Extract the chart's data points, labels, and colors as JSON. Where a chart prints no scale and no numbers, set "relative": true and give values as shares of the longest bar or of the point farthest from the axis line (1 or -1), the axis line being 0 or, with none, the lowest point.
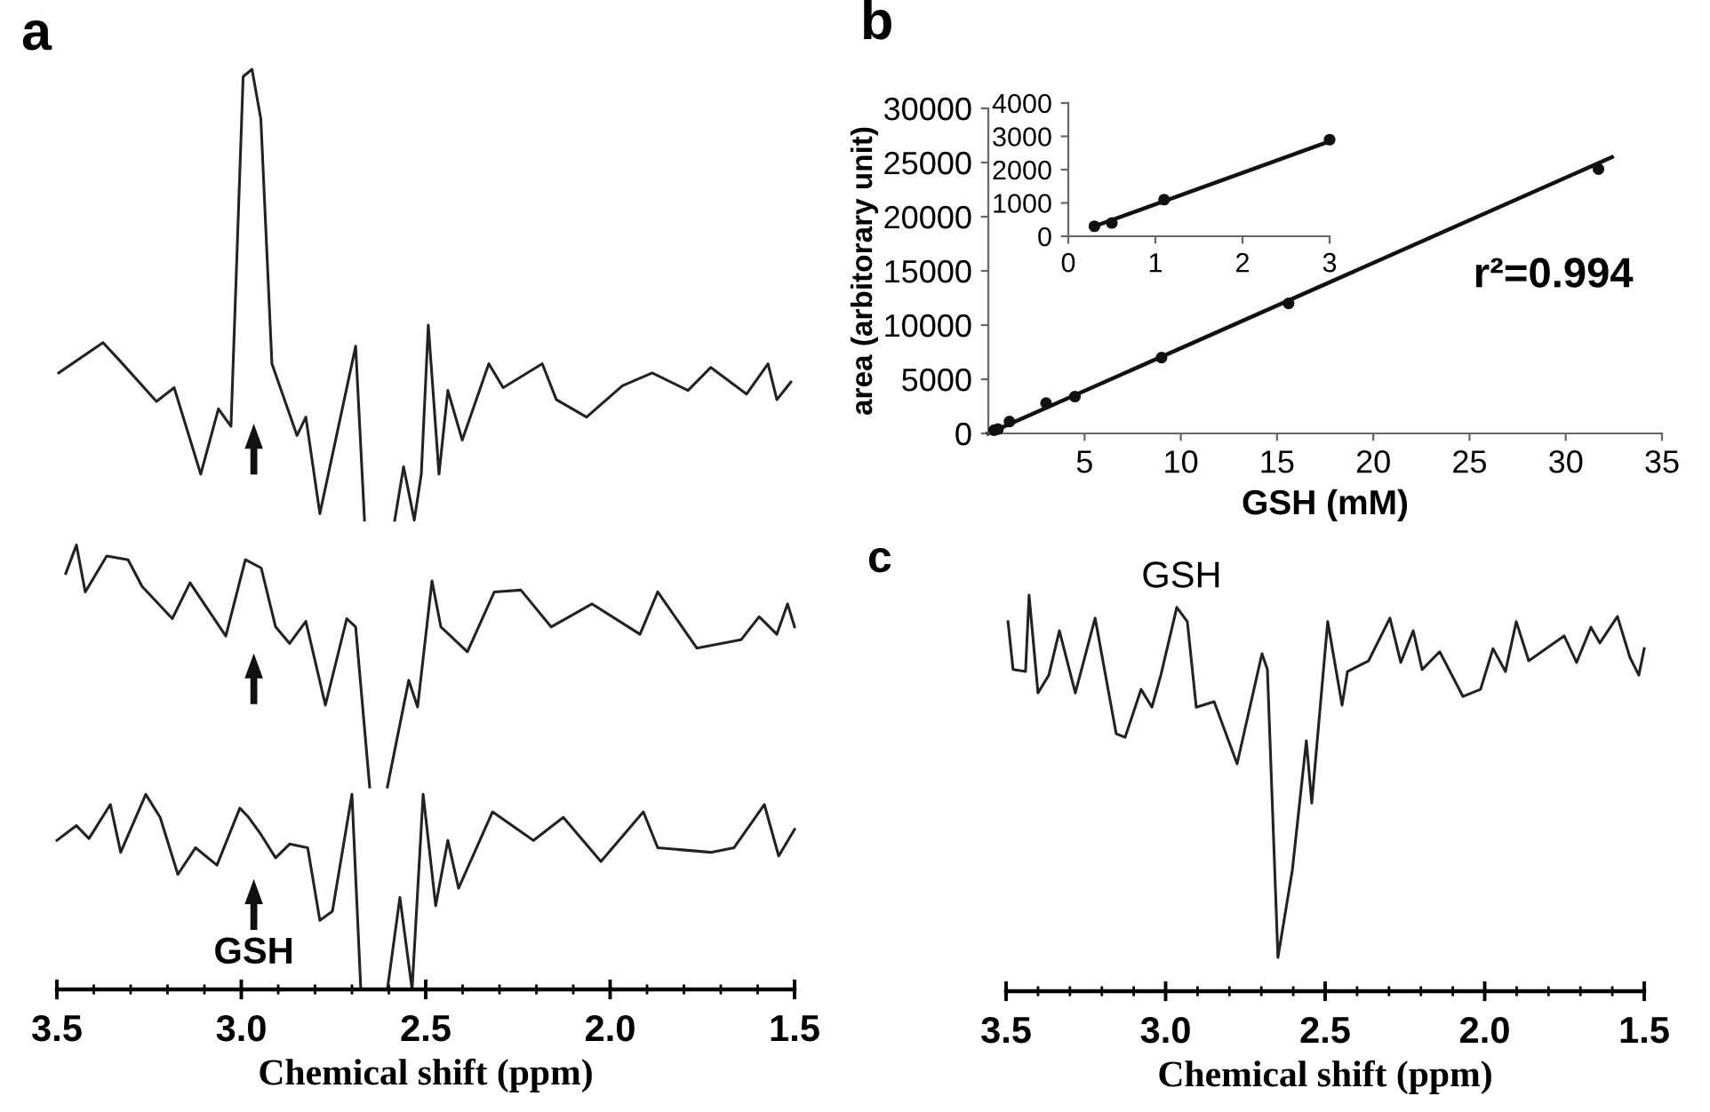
{
  "chart_data": [
    {
      "type": "line",
      "title": "a",
      "xlabel": "Chemical shift (ppm)",
      "relative": true,
      "tick_labels": "x",
      "xlim": [
        3.5,
        1.5
      ],
      "xticks": [
        {
          "value": 3.5,
          "label": "3.5"
        },
        {
          "value": 3.0,
          "label": "3.0"
        },
        {
          "value": 2.5,
          "label": "2.5"
        },
        {
          "value": 2.0,
          "label": "2.0"
        },
        {
          "value": 1.5,
          "label": "1.5"
        }
      ],
      "grid": false,
      "line_style": "solid",
      "annotations": [
        "GSH"
      ],
      "series": [
        {
          "color": "#222222",
          "x": [
            3.495,
            3.375,
            3.331,
            3.23,
            3.182,
            3.11,
            3.062,
            3.028,
            2.995,
            2.971,
            2.947,
            2.917,
            2.849,
            2.825,
            2.787,
            2.69,
            2.666,
            2.62,
            2.584,
            2.56,
            2.531,
            2.512,
            2.493,
            2.464,
            2.44,
            2.401,
            2.329,
            2.29,
            2.184,
            2.146,
            2.064,
            1.967,
            1.886,
            1.789,
            1.727,
            1.63,
            1.572,
            1.548,
            1.51
          ],
          "values": [
            0.67,
            0.703,
            0.684,
            0.639,
            0.654,
            0.56,
            0.631,
            0.612,
            0.992,
            1.0,
            0.946,
            0.68,
            0.602,
            0.622,
            0.517,
            0.699,
            0.51,
            null,
            0.51,
            0.568,
            0.51,
            0.56,
            0.722,
            0.56,
            0.651,
            0.597,
            0.68,
            0.654,
            0.68,
            0.641,
            0.622,
            0.656,
            0.67,
            0.651,
            0.676,
            0.647,
            0.68,
            0.641,
            0.66
          ]
        },
        {
          "color": "#222222",
          "x": [
            3.476,
            3.447,
            3.423,
            3.365,
            3.307,
            3.269,
            3.187,
            3.139,
            3.042,
            2.989,
            2.946,
            2.907,
            2.869,
            2.825,
            2.772,
            2.714,
            2.69,
            2.652,
            2.63,
            2.604,
            2.546,
            2.522,
            2.483,
            2.459,
            2.387,
            2.314,
            2.242,
            2.16,
            2.049,
            1.919,
            1.871,
            1.765,
            1.645,
            1.596,
            1.548,
            1.519,
            1.5
          ],
          "values": [
            0.452,
            0.483,
            0.432,
            0.471,
            0.467,
            0.438,
            0.403,
            0.442,
            0.384,
            0.467,
            0.458,
            0.394,
            0.376,
            0.4,
            0.309,
            0.403,
            0.394,
            0.22,
            null,
            0.22,
            0.336,
            0.307,
            0.444,
            0.394,
            0.367,
            0.432,
            0.434,
            0.394,
            0.419,
            0.386,
            0.432,
            0.371,
            0.38,
            0.405,
            0.386,
            0.419,
            0.394
          ]
        },
        {
          "color": "#222222",
          "x": [
            3.5,
            3.447,
            3.413,
            3.355,
            3.327,
            3.259,
            3.22,
            3.172,
            3.124,
            3.066,
            3.004,
            2.98,
            2.946,
            2.907,
            2.869,
            2.82,
            2.787,
            2.753,
            2.7,
            2.676,
            2.64,
            2.604,
            2.57,
            2.537,
            2.507,
            2.473,
            2.44,
            2.411,
            2.319,
            2.208,
            2.127,
            2.025,
            1.91,
            1.871,
            1.727,
            1.664,
            1.582,
            1.543,
            1.5
          ],
          "values": [
            0.162,
            0.178,
            0.164,
            0.201,
            0.149,
            0.212,
            0.187,
            0.125,
            0.154,
            0.135,
            0.197,
            0.187,
            0.168,
            0.143,
            0.158,
            0.154,
            0.075,
            0.085,
            0.212,
            0.0,
            null,
            0.0,
            0.1,
            0.0,
            0.212,
            0.091,
            0.162,
            0.11,
            0.193,
            0.162,
            0.187,
            0.139,
            0.193,
            0.154,
            0.149,
            0.154,
            0.201,
            0.145,
            0.174
          ]
        }
      ]
    },
    {
      "type": "scatter",
      "title": "b",
      "xlabel": "GSH (mM)",
      "ylabel": "area (arbitorary unit)",
      "xlim": [
        0,
        35
      ],
      "xticks": [
        5,
        10,
        15,
        20,
        25,
        30,
        35
      ],
      "ylim": [
        0,
        30000
      ],
      "yticks": [
        0,
        5000,
        10000,
        15000,
        20000,
        25000,
        30000
      ],
      "grid": false,
      "annotations": [
        "r²=0.994"
      ],
      "series": [
        {
          "type": "scatter",
          "marker": "circle",
          "color": "#111111",
          "x": [
            0.3,
            0.5,
            1.1,
            3,
            4.5,
            9,
            15.6,
            31.7
          ],
          "values": [
            300,
            400,
            1100,
            2800,
            3400,
            7000,
            12000,
            24400
          ]
        },
        {
          "type": "line",
          "color": "#111111",
          "x": [
            0,
            32.4
          ],
          "values": [
            0,
            25500
          ]
        }
      ]
    },
    {
      "type": "scatter",
      "xlim": [
        0,
        3
      ],
      "xticks": [
        0,
        1,
        2,
        3
      ],
      "ylim": [
        0,
        4000
      ],
      "yticks": [
        0,
        1000,
        2000,
        3000,
        4000
      ],
      "grid": false,
      "series": [
        {
          "type": "scatter",
          "marker": "circle",
          "color": "#111111",
          "x": [
            0.3,
            0.5,
            1.1,
            3
          ],
          "values": [
            300,
            400,
            1100,
            2900
          ]
        },
        {
          "type": "line",
          "color": "#111111",
          "x": [
            0.3,
            3
          ],
          "values": [
            300,
            2850
          ]
        }
      ]
    },
    {
      "type": "line",
      "title": "c",
      "xlabel": "Chemical shift (ppm)",
      "relative": true,
      "tick_labels": "x",
      "xlim": [
        3.5,
        1.5
      ],
      "xticks": [
        {
          "value": 3.5,
          "label": "3.5"
        },
        {
          "value": 3.0,
          "label": "3.0"
        },
        {
          "value": 2.5,
          "label": "2.5"
        },
        {
          "value": 2.0,
          "label": "2.0"
        },
        {
          "value": 1.5,
          "label": "1.5"
        }
      ],
      "grid": false,
      "line_style": "solid",
      "annotations": [
        {
          "text": "GSH",
          "x": 2.95,
          "y": 0.97
        }
      ],
      "series": [
        {
          "color": "#222222",
          "x": [
            3.494,
            3.478,
            3.439,
            3.428,
            3.4,
            3.366,
            3.333,
            3.283,
            3.221,
            3.155,
            3.127,
            3.077,
            3.043,
            3.015,
            2.965,
            2.932,
            2.904,
            2.848,
            2.776,
            2.698,
            2.681,
            2.648,
            2.603,
            2.559,
            2.542,
            2.492,
            2.447,
            2.43,
            2.364,
            2.297,
            2.263,
            2.224,
            2.196,
            2.141,
            2.068,
            2.013,
            1.974,
            1.935,
            1.901,
            1.862,
            1.751,
            1.712,
            1.667,
            1.639,
            1.584,
            1.545,
            1.517,
            1.5
          ],
          "values": [
            0.933,
            0.812,
            0.807,
            1.0,
            0.753,
            0.798,
            0.91,
            0.753,
            0.942,
            0.65,
            0.641,
            0.762,
            0.717,
            0.798,
            0.969,
            0.933,
            0.717,
            0.731,
            0.574,
            0.852,
            0.812,
            0.085,
            0.305,
            0.632,
            0.475,
            0.933,
            0.722,
            0.807,
            0.834,
            0.942,
            0.83,
            0.91,
            0.812,
            0.857,
            0.744,
            0.762,
            0.865,
            0.807,
            0.933,
            0.834,
            0.897,
            0.83,
            0.919,
            0.879,
            0.946,
            0.843,
            0.798,
            0.865
          ]
        }
      ]
    }
  ]
}
